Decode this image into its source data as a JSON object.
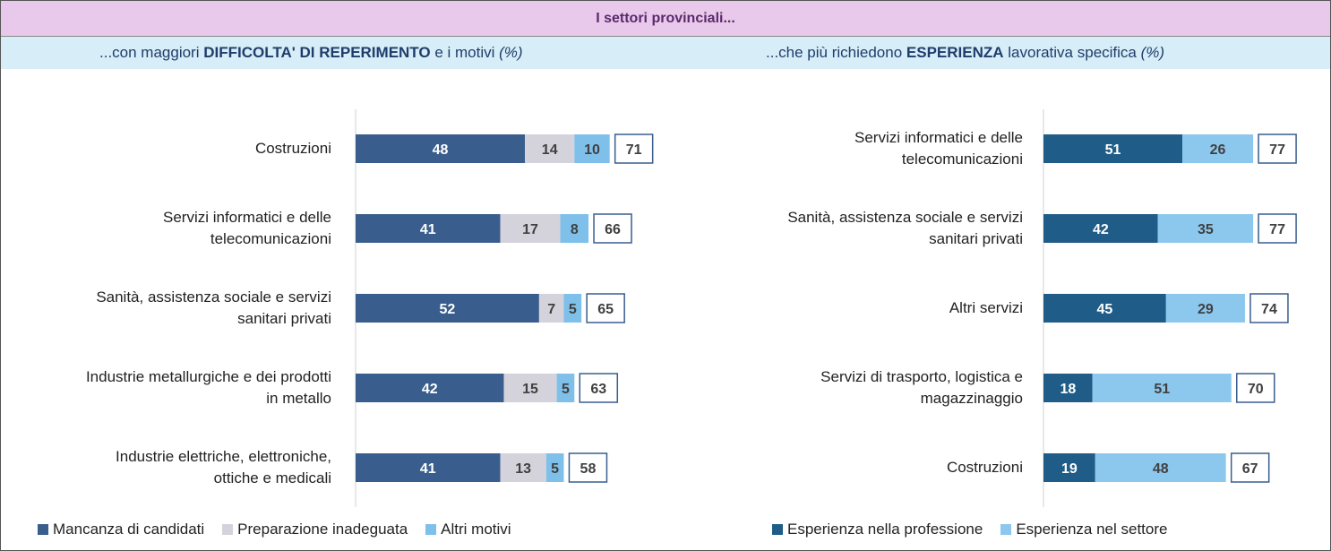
{
  "header": "I settori provinciali...",
  "chart_data": [
    {
      "type": "bar",
      "orientation": "horizontal",
      "stacked": true,
      "title_parts": [
        "...con maggiori ",
        "DIFFICOLTA' DI REPERIMENTO",
        " e i motivi ",
        "(%)"
      ],
      "title_styles": [
        "normal",
        "bold",
        "normal",
        "italic"
      ],
      "categories": [
        "Costruzioni",
        "Servizi informatici e delle telecomunicazioni",
        "Sanità, assistenza sociale e servizi sanitari privati",
        "Industrie metallurgiche e dei prodotti in metallo",
        "Industrie elettriche, elettroniche, ottiche e medicali"
      ],
      "series": [
        {
          "name": "Mancanza di candidati",
          "color": "#395e8d",
          "values": [
            48,
            41,
            52,
            42,
            41
          ]
        },
        {
          "name": "Preparazione inadeguata",
          "color": "#d4d3dc",
          "values": [
            14,
            17,
            7,
            15,
            13
          ]
        },
        {
          "name": "Altri motivi",
          "color": "#7fc0ea",
          "values": [
            10,
            8,
            5,
            5,
            5
          ]
        }
      ],
      "totals": [
        71,
        66,
        65,
        63,
        58
      ]
    },
    {
      "type": "bar",
      "orientation": "horizontal",
      "stacked": true,
      "title_parts": [
        "...che più richiedono ",
        "ESPERIENZA",
        " lavorativa specifica ",
        "(%)"
      ],
      "title_styles": [
        "normal",
        "bold",
        "normal",
        "italic"
      ],
      "categories": [
        "Servizi informatici e delle telecomunicazioni",
        "Sanità, assistenza sociale e servizi sanitari privati",
        "Altri servizi",
        "Servizi di trasporto, logistica e magazzinaggio",
        "Costruzioni"
      ],
      "series": [
        {
          "name": "Esperienza nella professione",
          "color": "#1f5c87",
          "values": [
            51,
            42,
            45,
            18,
            19
          ]
        },
        {
          "name": "Esperienza nel settore",
          "color": "#8cc8ee",
          "values": [
            26,
            35,
            29,
            51,
            48
          ]
        }
      ],
      "totals": [
        77,
        77,
        74,
        70,
        67
      ]
    }
  ]
}
